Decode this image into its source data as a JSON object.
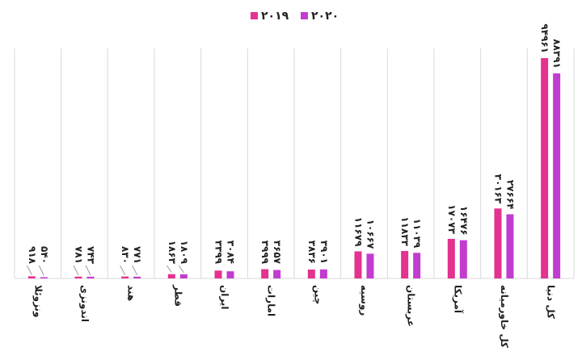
{
  "chart_data": {
    "type": "bar",
    "categories": [
      "ونزوئلا",
      "اندونزی",
      "هند",
      "قطر",
      "ایران",
      "امارات",
      "چین",
      "روسیه",
      "عربستان",
      "آمریکا",
      "کل خاورمیانه",
      "کل دنیا"
    ],
    "series": [
      {
        "name": "۲۰۱۹",
        "color": "#e3328f",
        "values": [
          918,
          781,
          830,
          1863,
          3399,
          3999,
          3836,
          11679,
          11833,
          17073,
          30163,
          94961
        ],
        "value_labels": [
          "۹۱۸",
          "۷۸۱",
          "۸۳۰",
          "۱۸۶۳",
          "۳۳۹۹",
          "۳۹۹۹",
          "۳۸۳۶",
          "۱۱۶۷۹",
          "۱۱۸۳۳",
          "۱۷۰۷۳",
          "۳۰۱۶۳",
          "۹۴۹۶۱"
        ]
      },
      {
        "name": "۲۰۲۰",
        "color": "#c23ccf",
        "values": [
          540,
          743,
          771,
          1809,
          3084,
          3657,
          3901,
          10667,
          11039,
          16476,
          27664,
          88391
        ],
        "value_labels": [
          "۵۴۰",
          "۷۴۳",
          "۷۷۱",
          "۱۸۰۹",
          "۳۰۸۴",
          "۳۶۵۷",
          "۳۹۰۱",
          "۱۰۶۶۷",
          "۱۱۰۳۹",
          "۱۶۴۷۶",
          "۲۷۶۶۴",
          "۸۸۳۹۱"
        ]
      }
    ],
    "legend": "top",
    "grid": true
  }
}
